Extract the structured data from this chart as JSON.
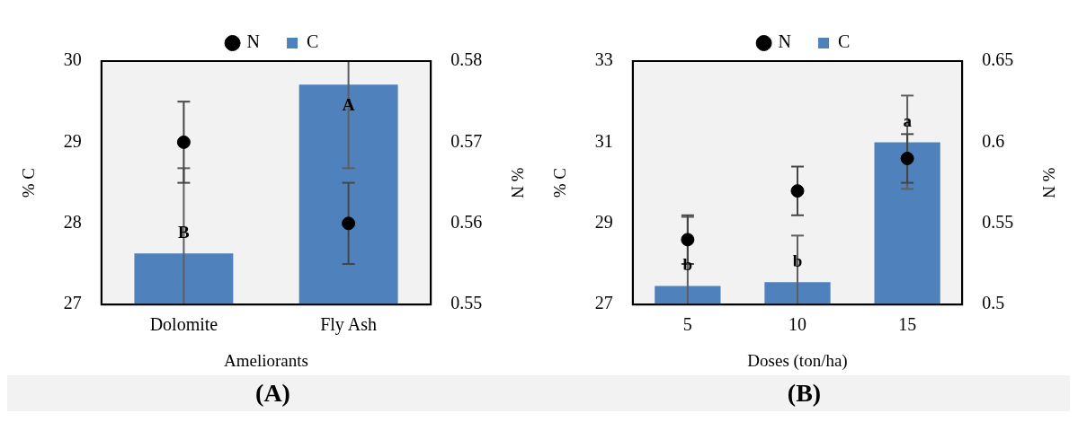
{
  "chart_data": [
    {
      "type": "bar",
      "categories": [
        "Dolomite",
        "Fly Ash"
      ],
      "xlabel": "Ameliorants",
      "ylabel": "% C",
      "y2label": "% N",
      "series": [
        {
          "name": "C",
          "color": "#4f81bd",
          "values": [
            27.63,
            29.71
          ],
          "errors": [
            [
              27,
              28.68
            ],
            [
              28.68,
              30
            ]
          ]
        },
        {
          "name": "N",
          "type": "scatter",
          "axis": "y2",
          "color": "#000000",
          "values": [
            0.57,
            0.56
          ],
          "errors": [
            0.005,
            0.005
          ]
        }
      ],
      "ylim": [
        27,
        30
      ],
      "yticks": [
        27,
        28,
        29,
        30
      ],
      "y2lim": [
        0.55,
        0.58
      ],
      "y2ticks": [
        0.55,
        0.56,
        0.57,
        0.58
      ],
      "legend": "top",
      "marker": "circle",
      "grid": false,
      "annotations": [
        {
          "text": "B",
          "x": "Dolomite",
          "y": 27.63
        },
        {
          "text": "A",
          "x": "Fly Ash",
          "y": 29.71
        },
        "(A)"
      ]
    },
    {
      "type": "bar",
      "categories": [
        "5",
        "10",
        "15"
      ],
      "xlabel": "Doses (ton/ha)",
      "ylabel": "% C",
      "y2label": "% N",
      "series": [
        {
          "name": "C",
          "color": "#4f81bd",
          "values": [
            27.46,
            27.55,
            31.0
          ],
          "errors": [
            [
              27,
              29.16
            ],
            [
              27,
              28.7
            ],
            1.15
          ]
        },
        {
          "name": "N",
          "type": "scatter",
          "axis": "y2",
          "color": "#000000",
          "values": [
            0.54,
            0.57,
            0.59
          ],
          "errors": [
            0.015,
            0.015,
            0.015
          ]
        }
      ],
      "ylim": [
        27,
        33
      ],
      "yticks": [
        27,
        29,
        31,
        33
      ],
      "y2lim": [
        0.5,
        0.65
      ],
      "y2ticks": [
        0.5,
        0.55,
        0.6,
        0.65
      ],
      "legend": "top",
      "marker": "circle",
      "grid": false,
      "annotations": [
        {
          "text": "b",
          "x": "5",
          "y": 27.46
        },
        {
          "text": "b",
          "x": "10",
          "y": 27.55
        },
        {
          "text": "a",
          "x": "15",
          "y": 31.0
        },
        "(B)"
      ]
    }
  ]
}
